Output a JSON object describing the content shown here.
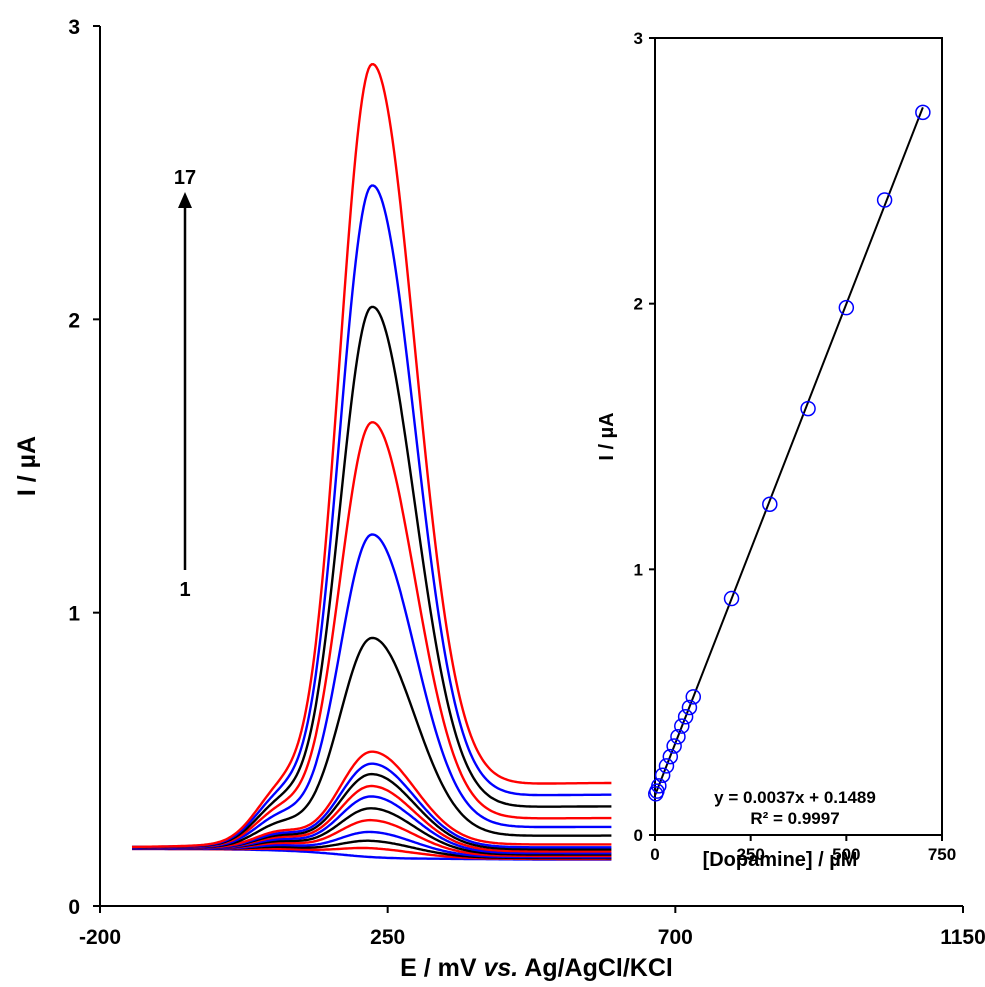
{
  "chart_data": [
    {
      "type": "line",
      "title": "",
      "xlabel_parts": [
        "E / mV ",
        "vs.",
        " Ag/AgCl/KCl"
      ],
      "ylabel": "I / µA",
      "xlim": [
        -200,
        1150
      ],
      "ylim": [
        0,
        3
      ],
      "xticks": [
        "-200",
        "250",
        "700",
        "1150"
      ],
      "yticks": [
        "0",
        "1",
        "2",
        "3"
      ],
      "grid": false,
      "legend": "none",
      "annotation": {
        "top_label": "17",
        "bottom_label": "1"
      },
      "peak_potential_mV": 225,
      "x_range_mV": [
        -150,
        600
      ],
      "series": [
        {
          "color": "#0000ff",
          "baseline_left": 0.195,
          "baseline_right": 0.158,
          "peak": 0.17,
          "shoulder": 0.0
        },
        {
          "color": "#ff0000",
          "baseline_left": 0.195,
          "baseline_right": 0.16,
          "peak": 0.2,
          "shoulder": 0.005
        },
        {
          "color": "#000000",
          "baseline_left": 0.196,
          "baseline_right": 0.163,
          "peak": 0.225,
          "shoulder": 0.01
        },
        {
          "color": "#0000ff",
          "baseline_left": 0.196,
          "baseline_right": 0.166,
          "peak": 0.255,
          "shoulder": 0.015
        },
        {
          "color": "#ff0000",
          "baseline_left": 0.197,
          "baseline_right": 0.17,
          "peak": 0.295,
          "shoulder": 0.02
        },
        {
          "color": "#000000",
          "baseline_left": 0.197,
          "baseline_right": 0.175,
          "peak": 0.335,
          "shoulder": 0.025
        },
        {
          "color": "#0000ff",
          "baseline_left": 0.197,
          "baseline_right": 0.18,
          "peak": 0.375,
          "shoulder": 0.03
        },
        {
          "color": "#ff0000",
          "baseline_left": 0.198,
          "baseline_right": 0.186,
          "peak": 0.41,
          "shoulder": 0.035
        },
        {
          "color": "#000000",
          "baseline_left": 0.198,
          "baseline_right": 0.193,
          "peak": 0.45,
          "shoulder": 0.04
        },
        {
          "color": "#0000ff",
          "baseline_left": 0.198,
          "baseline_right": 0.2,
          "peak": 0.485,
          "shoulder": 0.045
        },
        {
          "color": "#ff0000",
          "baseline_left": 0.199,
          "baseline_right": 0.21,
          "peak": 0.525,
          "shoulder": 0.05
        },
        {
          "color": "#000000",
          "baseline_left": 0.199,
          "baseline_right": 0.24,
          "peak": 0.91,
          "shoulder": 0.07
        },
        {
          "color": "#0000ff",
          "baseline_left": 0.199,
          "baseline_right": 0.27,
          "peak": 1.26,
          "shoulder": 0.09
        },
        {
          "color": "#ff0000",
          "baseline_left": 0.2,
          "baseline_right": 0.3,
          "peak": 1.64,
          "shoulder": 0.105
        },
        {
          "color": "#000000",
          "baseline_left": 0.2,
          "baseline_right": 0.34,
          "peak": 2.03,
          "shoulder": 0.12
        },
        {
          "color": "#0000ff",
          "baseline_left": 0.2,
          "baseline_right": 0.38,
          "peak": 2.44,
          "shoulder": 0.135
        },
        {
          "color": "#ff0000",
          "baseline_left": 0.2,
          "baseline_right": 0.42,
          "peak": 2.85,
          "shoulder": 0.15
        }
      ]
    },
    {
      "type": "scatter",
      "title": "",
      "xlabel": "[Dopamine] / µM",
      "ylabel": "I / µA",
      "xlim": [
        0,
        750
      ],
      "ylim": [
        0,
        3
      ],
      "xticks": [
        "0",
        "250",
        "500",
        "750"
      ],
      "yticks": [
        "0",
        "1",
        "2",
        "3"
      ],
      "grid": false,
      "legend": "none",
      "marker_color": "#0000ff",
      "x": [
        2,
        5,
        10,
        20,
        30,
        40,
        50,
        60,
        70,
        80,
        90,
        100,
        200,
        300,
        400,
        500,
        600,
        700
      ],
      "y": [
        0.155,
        0.165,
        0.185,
        0.225,
        0.26,
        0.295,
        0.335,
        0.37,
        0.41,
        0.445,
        0.48,
        0.52,
        0.89,
        1.245,
        1.605,
        1.985,
        2.39,
        2.72
      ],
      "fit": {
        "slope": 0.0037,
        "intercept": 0.1489
      },
      "equation": "y = 0.0037x + 0.1489",
      "r2": "R² = 0.9997"
    }
  ]
}
